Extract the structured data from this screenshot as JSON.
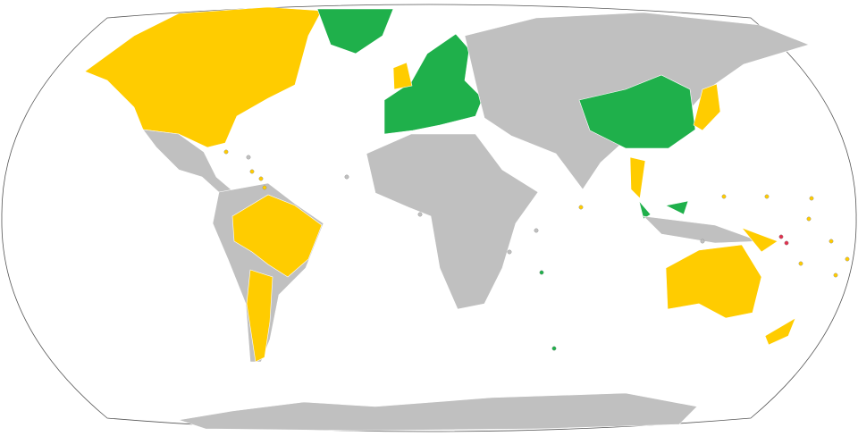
{
  "map": {
    "projection": "robinson-world",
    "colors": {
      "category_a": "#1fb04b",
      "category_b": "#ffcc00",
      "category_c": "#e0324f",
      "other": "#c0c0c0",
      "ocean": "#ffffff",
      "outline": "#555555"
    },
    "regions": [
      {
        "name": "north-america-usa-canada",
        "category": "category_b"
      },
      {
        "name": "greenland",
        "category": "category_a"
      },
      {
        "name": "mexico-central-america",
        "category": "other"
      },
      {
        "name": "south-america",
        "category": "other"
      },
      {
        "name": "brazil",
        "category": "category_b"
      },
      {
        "name": "argentina",
        "category": "category_b"
      },
      {
        "name": "europe-eu",
        "category": "category_a"
      },
      {
        "name": "united-kingdom",
        "category": "category_b"
      },
      {
        "name": "africa",
        "category": "other"
      },
      {
        "name": "russia-asia",
        "category": "other"
      },
      {
        "name": "china",
        "category": "category_a"
      },
      {
        "name": "japan",
        "category": "category_b"
      },
      {
        "name": "thailand",
        "category": "category_b"
      },
      {
        "name": "malaysia",
        "category": "category_a"
      },
      {
        "name": "indonesia",
        "category": "other"
      },
      {
        "name": "papua-new-guinea",
        "category": "category_b"
      },
      {
        "name": "australia",
        "category": "category_b"
      },
      {
        "name": "new-zealand",
        "category": "category_b"
      },
      {
        "name": "antarctica",
        "category": "other"
      }
    ]
  }
}
